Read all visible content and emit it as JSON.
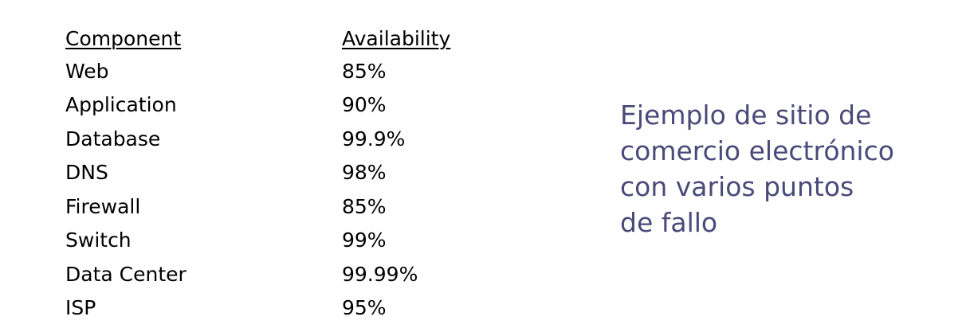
{
  "table": {
    "headers": {
      "component": "Component",
      "availability": "Availability"
    },
    "rows": [
      {
        "component": "Web",
        "availability": "85%"
      },
      {
        "component": "Application",
        "availability": "90%"
      },
      {
        "component": "Database",
        "availability": "99.9%"
      },
      {
        "component": "DNS",
        "availability": "98%"
      },
      {
        "component": "Firewall",
        "availability": "85%"
      },
      {
        "component": "Switch",
        "availability": "99%"
      },
      {
        "component": "Data Center",
        "availability": "99.99%"
      },
      {
        "component": "ISP",
        "availability": "95%"
      }
    ]
  },
  "caption": {
    "text": "Ejemplo de sitio de\ncomercio electrónico\ncon varios puntos\nde fallo"
  },
  "colors": {
    "caption": "#4a4a7a",
    "text": "#000000"
  }
}
